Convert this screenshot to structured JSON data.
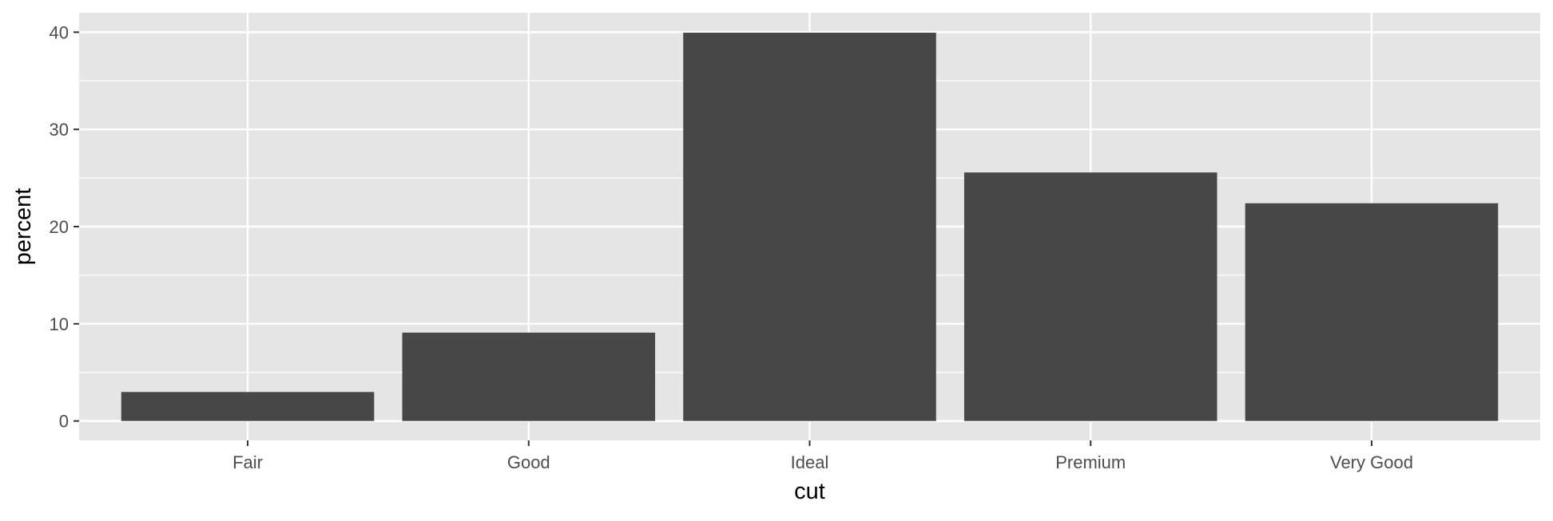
{
  "chart_data": {
    "type": "bar",
    "categories": [
      "Fair",
      "Good",
      "Ideal",
      "Premium",
      "Very Good"
    ],
    "values": [
      2.98,
      9.09,
      39.95,
      25.57,
      22.4
    ],
    "title": "",
    "xlabel": "cut",
    "ylabel": "percent",
    "ylim": [
      -2,
      42
    ],
    "yticks": [
      0,
      10,
      20,
      30,
      40
    ],
    "ytick_labels": [
      "0",
      "10",
      "20",
      "30",
      "40"
    ],
    "grid": true,
    "legend": "none",
    "colors": {
      "panel_background": "#e5e5e5",
      "gridline": "#ffffff",
      "bar_fill": "#474747",
      "tick_text": "#4d4d4d",
      "axis_title": "#000000"
    }
  }
}
